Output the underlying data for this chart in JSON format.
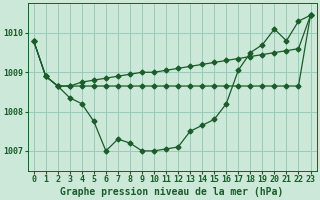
{
  "background_color": "#cce8d8",
  "grid_color": "#99ccbb",
  "line_color": "#1a5c2a",
  "title": "Graphe pression niveau de la mer (hPa)",
  "ylim": [
    1006.5,
    1010.75
  ],
  "yticks": [
    1007,
    1008,
    1009,
    1010
  ],
  "xlim": [
    -0.5,
    23.5
  ],
  "xticks": [
    0,
    1,
    2,
    3,
    4,
    5,
    6,
    7,
    8,
    9,
    10,
    11,
    12,
    13,
    14,
    15,
    16,
    17,
    18,
    19,
    20,
    21,
    22,
    23
  ],
  "xtick_labels": [
    "0",
    "1",
    "2",
    "3",
    "4",
    "5",
    "6",
    "7",
    "8",
    "9",
    "10",
    "11",
    "12",
    "13",
    "14",
    "15",
    "16",
    "17",
    "18",
    "19",
    "20",
    "21",
    "22",
    "23"
  ],
  "line1": [
    1009.8,
    1008.9,
    1008.65,
    1008.35,
    1008.2,
    1007.75,
    1007.0,
    1007.3,
    1007.2,
    1007.0,
    1007.0,
    1007.05,
    1007.1,
    1007.5,
    1007.65,
    1007.8,
    1008.2,
    1009.05,
    1009.5,
    1009.7,
    1010.1,
    1009.8,
    1010.3,
    1010.45
  ],
  "line2": [
    1009.8,
    1008.9,
    1008.65,
    1008.65,
    1008.65,
    1008.65,
    1008.65,
    1008.65,
    1008.65,
    1008.65,
    1008.65,
    1008.65,
    1008.65,
    1008.65,
    1008.65,
    1008.65,
    1008.65,
    1008.65,
    1008.65,
    1008.65,
    1008.65,
    1008.65,
    1008.65,
    1010.45
  ],
  "line3": [
    1009.8,
    1008.9,
    1008.65,
    1008.65,
    1008.75,
    1008.8,
    1008.85,
    1008.9,
    1008.95,
    1009.0,
    1009.0,
    1009.05,
    1009.1,
    1009.15,
    1009.2,
    1009.25,
    1009.3,
    1009.35,
    1009.4,
    1009.45,
    1009.5,
    1009.55,
    1009.6,
    1010.45
  ],
  "title_fontsize": 7,
  "tick_fontsize": 6,
  "line_width": 0.9,
  "marker_size": 2.5
}
